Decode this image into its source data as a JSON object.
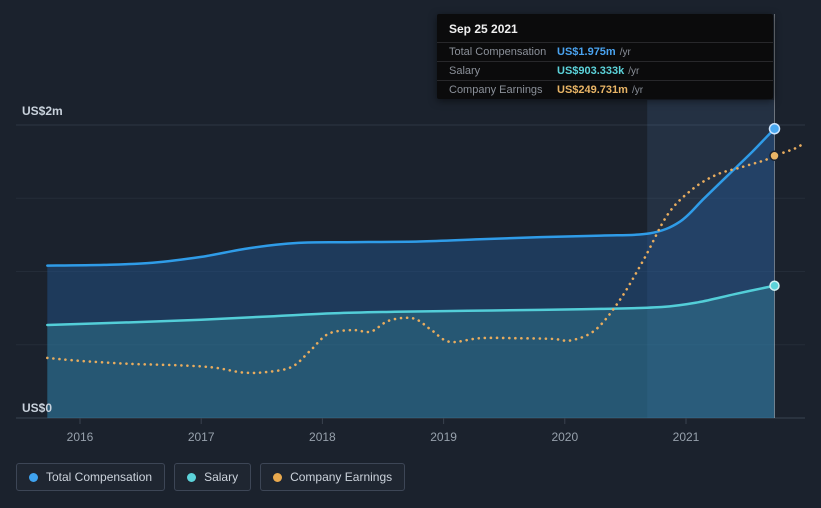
{
  "tooltip": {
    "date": "Sep 25 2021",
    "rows": [
      {
        "label": "Total Compensation",
        "value": "US$1.975m",
        "suffix": "/yr",
        "color": "#4aa3f0"
      },
      {
        "label": "Salary",
        "value": "US$903.333k",
        "suffix": "/yr",
        "color": "#5cd3da"
      },
      {
        "label": "Company Earnings",
        "value": "US$249.731m",
        "suffix": "/yr",
        "color": "#e9b566"
      }
    ]
  },
  "axis": {
    "y_top_label": "US$2m",
    "y_bottom_label": "US$0",
    "years": [
      "2016",
      "2017",
      "2018",
      "2019",
      "2020",
      "2021"
    ]
  },
  "legend": [
    {
      "label": "Total Compensation",
      "color": "#3fa3f0"
    },
    {
      "label": "Salary",
      "color": "#5cd3da"
    },
    {
      "label": "Company Earnings",
      "color": "#e9a94e"
    }
  ],
  "chart_data": {
    "type": "line",
    "title": "",
    "ylabel": "",
    "xlabel": "",
    "y_units": "US$ millions per year",
    "ylim": [
      0,
      2
    ],
    "x_range": [
      2015.73,
      2021.98
    ],
    "x_ticks": [
      2016,
      2017,
      2018,
      2019,
      2020,
      2021
    ],
    "gridline_values": [
      0,
      0.5,
      1,
      1.5,
      2
    ],
    "legend_position": "bottom-left",
    "grid": true,
    "series": [
      {
        "name": "Total Compensation",
        "color": "#2f9ce8",
        "style": "solid-area",
        "fill": "rgba(33,82,138,0.50)",
        "latest": "US$1.975m /yr at Sep 25 2021",
        "points": [
          [
            2015.73,
            1.04
          ],
          [
            2016.2,
            1.045
          ],
          [
            2016.6,
            1.06
          ],
          [
            2017.0,
            1.1
          ],
          [
            2017.4,
            1.16
          ],
          [
            2017.8,
            1.195
          ],
          [
            2018.2,
            1.2
          ],
          [
            2018.8,
            1.205
          ],
          [
            2019.3,
            1.22
          ],
          [
            2019.8,
            1.235
          ],
          [
            2020.3,
            1.245
          ],
          [
            2020.7,
            1.26
          ],
          [
            2020.95,
            1.34
          ],
          [
            2021.15,
            1.5
          ],
          [
            2021.35,
            1.66
          ],
          [
            2021.55,
            1.82
          ],
          [
            2021.73,
            1.975
          ]
        ]
      },
      {
        "name": "Salary",
        "color": "#53ced8",
        "style": "solid-area",
        "fill": "rgba(70,190,200,0.22)",
        "latest": "US$903.333k /yr at Sep 25 2021",
        "points": [
          [
            2015.73,
            0.635
          ],
          [
            2016.3,
            0.65
          ],
          [
            2017.0,
            0.67
          ],
          [
            2017.6,
            0.695
          ],
          [
            2018.1,
            0.715
          ],
          [
            2018.6,
            0.725
          ],
          [
            2019.2,
            0.732
          ],
          [
            2019.8,
            0.738
          ],
          [
            2020.3,
            0.745
          ],
          [
            2020.8,
            0.758
          ],
          [
            2021.1,
            0.79
          ],
          [
            2021.4,
            0.845
          ],
          [
            2021.73,
            0.903
          ]
        ]
      },
      {
        "name": "Company Earnings",
        "color": "#e8ac5e",
        "style": "dotted",
        "scale_note": "plotted on an unlabeled secondary scale; values below are positions read against the 0-2 left axis. Actual latest value US$249.731m /yr at Sep 25 2021",
        "points": [
          [
            2015.73,
            0.41
          ],
          [
            2016.0,
            0.39
          ],
          [
            2016.4,
            0.37
          ],
          [
            2016.8,
            0.36
          ],
          [
            2017.1,
            0.345
          ],
          [
            2017.35,
            0.31
          ],
          [
            2017.55,
            0.315
          ],
          [
            2017.75,
            0.35
          ],
          [
            2017.9,
            0.46
          ],
          [
            2018.05,
            0.575
          ],
          [
            2018.25,
            0.6
          ],
          [
            2018.4,
            0.59
          ],
          [
            2018.55,
            0.665
          ],
          [
            2018.75,
            0.68
          ],
          [
            2018.9,
            0.6
          ],
          [
            2019.05,
            0.52
          ],
          [
            2019.3,
            0.545
          ],
          [
            2019.6,
            0.545
          ],
          [
            2019.9,
            0.54
          ],
          [
            2020.05,
            0.53
          ],
          [
            2020.25,
            0.6
          ],
          [
            2020.45,
            0.8
          ],
          [
            2020.65,
            1.08
          ],
          [
            2020.85,
            1.39
          ],
          [
            2021.05,
            1.56
          ],
          [
            2021.25,
            1.66
          ],
          [
            2021.45,
            1.71
          ],
          [
            2021.65,
            1.76
          ],
          [
            2021.73,
            1.79
          ],
          [
            2021.9,
            1.84
          ],
          [
            2021.98,
            1.88
          ]
        ]
      }
    ],
    "highlight_band": {
      "from_x": 2020.68,
      "to_x": 2021.73
    },
    "hover_marker": {
      "x": 2021.73,
      "date": "Sep 25 2021",
      "total_compensation": 1.975,
      "salary": 0.903333,
      "company_earnings_actual_m": 249.731,
      "company_earnings_display": 1.79
    }
  }
}
